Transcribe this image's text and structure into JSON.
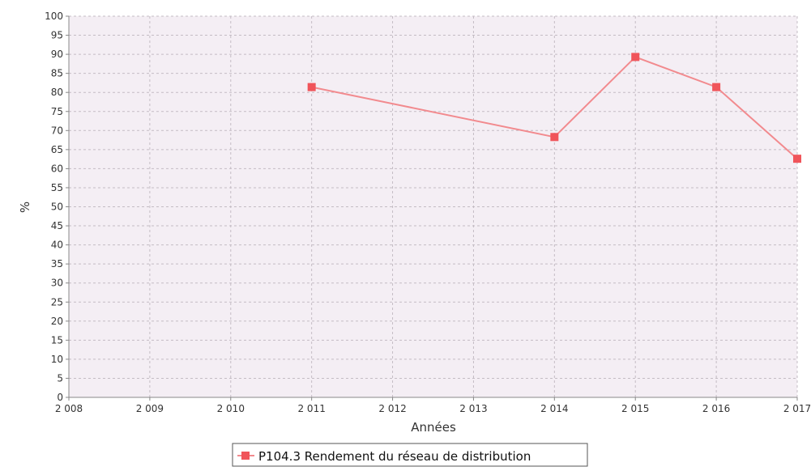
{
  "chart_data": {
    "type": "line",
    "title": "",
    "xlabel": "Années",
    "ylabel": "%",
    "x_ticks": [
      "2 008",
      "2 009",
      "2 010",
      "2 011",
      "2 012",
      "2 013",
      "2 014",
      "2 015",
      "2 016",
      "2 017"
    ],
    "xlim": [
      2008,
      2017
    ],
    "ylim": [
      0,
      100
    ],
    "y_ticks": [
      0,
      5,
      10,
      15,
      20,
      25,
      30,
      35,
      40,
      45,
      50,
      55,
      60,
      65,
      70,
      75,
      80,
      85,
      90,
      95,
      100
    ],
    "grid": true,
    "legend_position": "bottom-center",
    "series": [
      {
        "name": "P104.3 Rendement du réseau de distribution",
        "color": "#f0545a",
        "x": [
          2011,
          2014,
          2015,
          2016,
          2017
        ],
        "y": [
          81.4,
          68.3,
          89.3,
          81.4,
          62.6
        ]
      }
    ],
    "colors": {
      "plot_background": "#f4eef4",
      "grid": "#c4bcc4",
      "axis": "#888888",
      "line": "#f28a8e",
      "marker": "#f0545a"
    }
  }
}
